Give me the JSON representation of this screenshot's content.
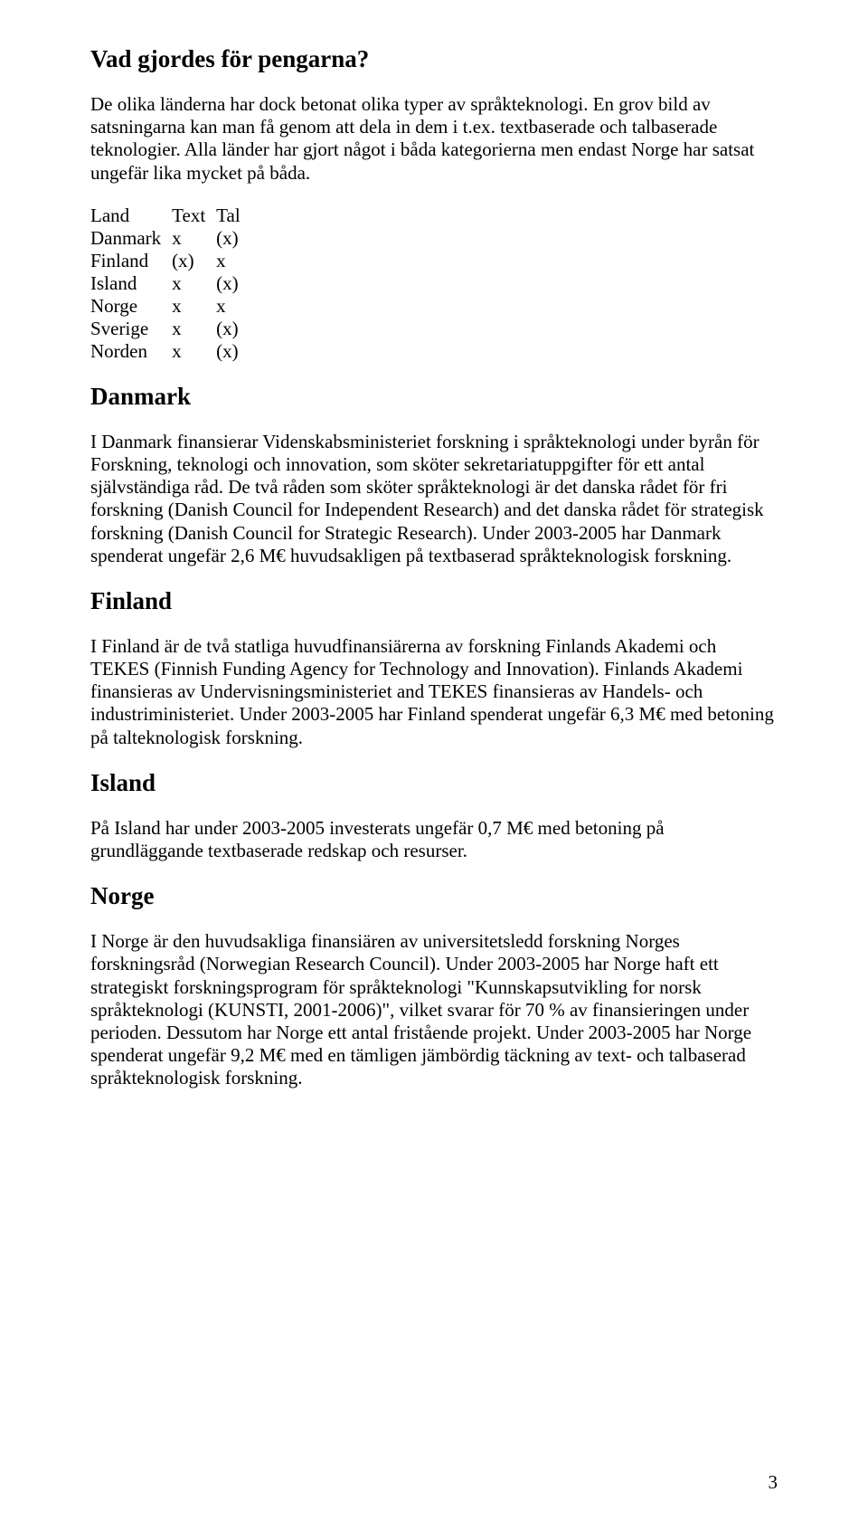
{
  "heading_main": "Vad gjordes för pengarna?",
  "intro_para": "De olika länderna har dock betonat olika typer av språkteknologi. En grov bild av satsningarna kan man få genom att dela in dem i t.ex. textbaserade och talbaserade teknologier. Alla länder har gjort något i båda kategorierna men endast Norge har satsat ungefär lika mycket på båda.",
  "table": {
    "header": {
      "c0": "Land",
      "c1": "Text",
      "c2": "Tal"
    },
    "rows": [
      {
        "c0": "Danmark",
        "c1": "x",
        "c2": "(x)"
      },
      {
        "c0": "Finland",
        "c1": "(x)",
        "c2": "x"
      },
      {
        "c0": "Island",
        "c1": "x",
        "c2": "(x)"
      },
      {
        "c0": "Norge",
        "c1": "x",
        "c2": "x"
      },
      {
        "c0": "Sverige",
        "c1": "x",
        "c2": "(x)"
      },
      {
        "c0": "Norden",
        "c1": "x",
        "c2": "(x)"
      }
    ]
  },
  "sections": {
    "danmark": {
      "title": "Danmark",
      "body": "I Danmark finansierar Videnskabsministeriet forskning i språkteknologi under byrån för Forskning, teknologi och innovation, som sköter sekretariatuppgifter för ett antal självständiga råd. De två råden som sköter språkteknologi är det danska rådet för fri forskning (Danish Council for Independent Research) and det danska rådet för strategisk forskning (Danish Council for Strategic Research). Under 2003-2005 har Danmark spenderat ungefär 2,6 M€ huvudsakligen på textbaserad språkteknologisk forskning."
    },
    "finland": {
      "title": "Finland",
      "body": "I Finland är de två statliga huvudfinansiärerna av forskning Finlands Akademi och TEKES (Finnish Funding Agency for Technology and Innovation). Finlands Akademi finansieras av Undervisningsministeriet and TEKES finansieras av Handels- och industriministeriet. Under 2003-2005 har Finland spenderat ungefär 6,3 M€ med betoning på talteknologisk forskning."
    },
    "island": {
      "title": "Island",
      "body": "På Island har under 2003-2005 investerats ungefär 0,7 M€ med betoning på grundläggande textbaserade redskap och resurser."
    },
    "norge": {
      "title": "Norge",
      "body": "I Norge är den huvudsakliga finansiären av universitetsledd forskning Norges forskningsråd (Norwegian Research Council). Under 2003-2005 har Norge haft ett strategiskt forskningsprogram för språkteknologi \"Kunnskapsutvikling for norsk språkteknologi (KUNSTI, 2001-2006)\", vilket svarar för 70 % av finansieringen under perioden. Dessutom har Norge ett antal fristående projekt. Under 2003-2005 har Norge spenderat ungefär 9,2 M€ med en tämligen jämbördig täckning av text- och talbaserad språkteknologisk forskning."
    }
  },
  "page_number": "3"
}
